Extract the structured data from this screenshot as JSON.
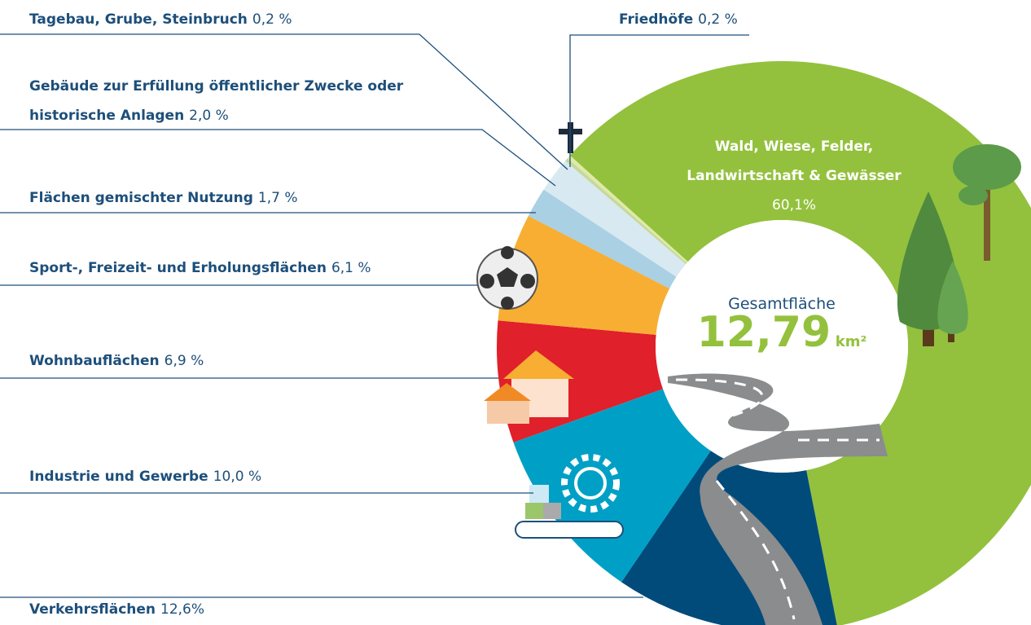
{
  "chart_data": {
    "type": "donut",
    "categories": [
      "Wald, Wiese, Felder, Landwirtschaft & Gewässer",
      "Verkehrsflächen",
      "Industrie und Gewerbe",
      "Wohnbauflächen",
      "Sport-, Freizeit- und Erholungsflächen",
      "Flächen gemischter Nutzung",
      "Gebäude zur Erfüllung öffentlicher Zwecke oder historische Anlagen",
      "Tagebau, Grube, Steinbruch",
      "Friedhöfe"
    ],
    "values": [
      60.1,
      12.6,
      10.0,
      6.9,
      6.1,
      1.7,
      2.0,
      0.2,
      0.2
    ],
    "value_labels": [
      "60,1%",
      "12,6%",
      "10,0 %",
      "6,9 %",
      "6,1 %",
      "1,7 %",
      "2,0 %",
      "0,2 %",
      "0,2 %"
    ],
    "colors": [
      "#93c13d",
      "#004b7a",
      "#00a0c6",
      "#e0202a",
      "#f7ae33",
      "#a9d0e3",
      "#d8e9f1",
      "#c5d99a",
      "#dfeaa8"
    ],
    "center_label": "Gesamtfläche",
    "total": "12,79",
    "unit": "km²"
  }
}
